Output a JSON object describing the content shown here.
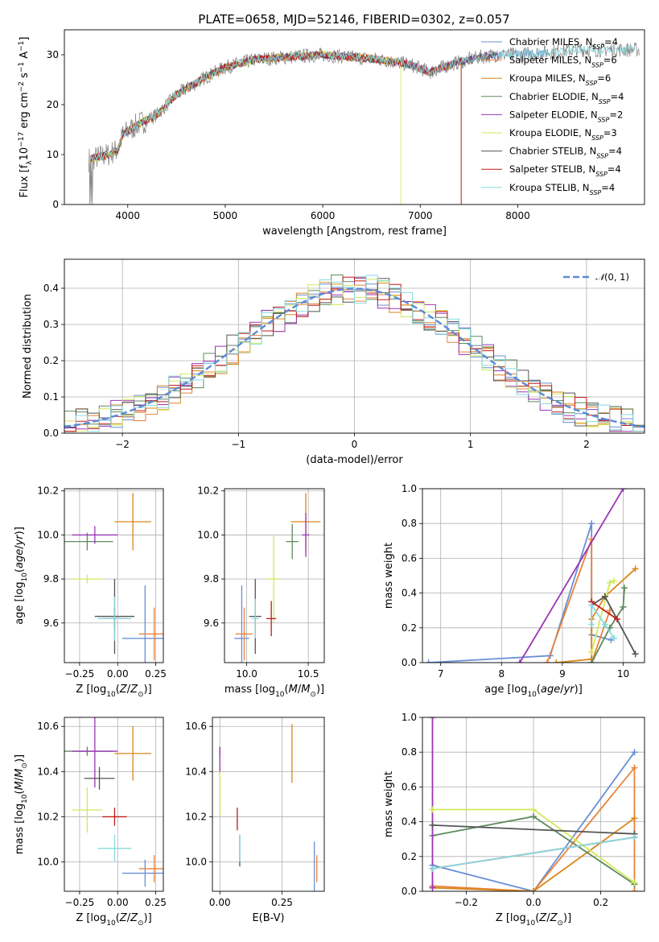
{
  "figure": {
    "title": "PLATE=0658, MJD=52146, FIBERID=0302, z=0.057"
  },
  "models": [
    {
      "name": "Chabrier MILES, N_SSP=4",
      "color": "#6a8fd5",
      "nssp": 4
    },
    {
      "name": "Salpeter MILES, N_SSP=6",
      "color": "#e8833a",
      "nssp": 6
    },
    {
      "name": "Kroupa MILES, N_SSP=6",
      "color": "#d9861c",
      "nssp": 6
    },
    {
      "name": "Chabrier ELODIE, N_SSP=4",
      "color": "#5e8a5e",
      "nssp": 4
    },
    {
      "name": "Salpeter ELODIE, N_SSP=2",
      "color": "#9b35b5",
      "nssp": 2
    },
    {
      "name": "Kroupa ELODIE, N_SSP=3",
      "color": "#d2e85a",
      "nssp": 3
    },
    {
      "name": "Chabrier STELIB, N_SSP=4",
      "color": "#555555",
      "nssp": 4
    },
    {
      "name": "Salpeter STELIB, N_SSP=4",
      "color": "#c21a1a",
      "nssp": 4
    },
    {
      "name": "Kroupa STELIB, N_SSP=4",
      "color": "#86dbe0",
      "nssp": 4
    }
  ],
  "chart_data": [
    {
      "id": "spectrum",
      "type": "line",
      "xlabel": "wavelength [Angstrom, rest frame]",
      "ylabel": "Flux [f_λ 10^-17 erg cm^-2 s^-1 A^-1]",
      "xlim": [
        3350,
        9300
      ],
      "ylim": [
        0,
        35
      ],
      "xticks": [
        4000,
        5000,
        6000,
        7000,
        8000
      ],
      "yticks": [
        0,
        10,
        20,
        30
      ],
      "grid": false,
      "legend": "top-right",
      "continuum": {
        "x": [
          3600,
          3800,
          3900,
          3950,
          4100,
          4300,
          4500,
          4800,
          5000,
          5300,
          5600,
          6000,
          6300,
          6600,
          6900,
          7100,
          7300,
          7600,
          7800,
          8000,
          8300,
          8600,
          9200
        ],
        "y": [
          9,
          10,
          11,
          14,
          16,
          18,
          22,
          25.5,
          27.5,
          29,
          29.5,
          30,
          29.5,
          29,
          28,
          26.5,
          28,
          29.5,
          30,
          30,
          30.5,
          31,
          31
        ]
      }
    },
    {
      "id": "residuals",
      "type": "histogram",
      "xlabel": "(data-model)/error",
      "ylabel": "Normed distribution",
      "xlim": [
        -2.5,
        2.5
      ],
      "ylim": [
        0,
        0.48
      ],
      "xticks": [
        -2,
        -1,
        0,
        1,
        2
      ],
      "yticks": [
        0.0,
        0.1,
        0.2,
        0.3,
        0.4
      ],
      "grid": true,
      "legend": "top-right",
      "reference": {
        "name": "N(0,1)",
        "mean": 0,
        "sigma": 1
      },
      "bin_width": 0.1
    },
    {
      "id": "age-vs-Z",
      "type": "errorbar",
      "xlabel": "Z [log10(Z/Z⊙)]",
      "ylabel": "age [log10(age/yr)]",
      "xlim": [
        -0.35,
        0.3
      ],
      "ylim": [
        9.42,
        10.21
      ],
      "xticks": [
        -0.25,
        0.0,
        0.25
      ],
      "yticks": [
        9.6,
        9.8,
        10.0,
        10.2
      ],
      "grid": true,
      "points": [
        {
          "x": 0.18,
          "xerr": 0.15,
          "y": 9.53,
          "yerr": 0.24
        },
        {
          "x": 0.24,
          "xerr": 0.1,
          "y": 9.55,
          "yerr": 0.12
        },
        {
          "x": 0.1,
          "xerr": 0.12,
          "y": 10.06,
          "yerr": 0.13
        },
        {
          "x": -0.2,
          "xerr": 0.17,
          "y": 9.97,
          "yerr": 0.04
        },
        {
          "x": -0.15,
          "xerr": 0.15,
          "y": 10.0,
          "yerr": 0.04
        },
        {
          "x": -0.2,
          "xerr": 0.1,
          "y": 9.8,
          "yerr": 0.02
        },
        {
          "x": -0.02,
          "xerr": 0.13,
          "y": 9.63,
          "yerr": 0.17
        },
        {
          "x": -0.02,
          "xerr": 0.08,
          "y": 9.62,
          "yerr": 0.05
        },
        {
          "x": -0.02,
          "xerr": 0.11,
          "y": 9.62,
          "yerr": 0.1
        }
      ]
    },
    {
      "id": "age-vs-mass",
      "type": "errorbar",
      "xlabel": "mass [log10(M/M⊙)]",
      "ylabel": "",
      "xlim": [
        9.82,
        10.63
      ],
      "ylim": [
        9.42,
        10.21
      ],
      "xticks": [
        10.0,
        10.5
      ],
      "yticks": [
        9.6,
        9.8,
        10.0,
        10.2
      ],
      "grid": true,
      "points": [
        {
          "x": 9.96,
          "xerr": 0.06,
          "y": 9.53,
          "yerr": 0.24
        },
        {
          "x": 9.98,
          "xerr": 0.07,
          "y": 9.55,
          "yerr": 0.12
        },
        {
          "x": 10.48,
          "xerr": 0.12,
          "y": 10.06,
          "yerr": 0.13
        },
        {
          "x": 10.37,
          "xerr": 0.05,
          "y": 9.97,
          "yerr": 0.08
        },
        {
          "x": 10.48,
          "xerr": 0.03,
          "y": 10.0,
          "yerr": 0.1
        },
        {
          "x": 10.22,
          "xerr": 0.05,
          "y": 9.8,
          "yerr": 0.2
        },
        {
          "x": 10.07,
          "xerr": 0.05,
          "y": 9.63,
          "yerr": 0.17
        },
        {
          "x": 10.2,
          "xerr": 0.04,
          "y": 9.62,
          "yerr": 0.08
        },
        {
          "x": 10.07,
          "xerr": 0.03,
          "y": 9.62,
          "yerr": 0.09
        }
      ]
    },
    {
      "id": "weight-vs-age",
      "type": "line",
      "xlabel": "age [log10(age/yr)]",
      "ylabel": "mass weight",
      "xlim": [
        6.7,
        10.35
      ],
      "ylim": [
        0,
        1
      ],
      "xticks": [
        7,
        8,
        9,
        10
      ],
      "yticks": [
        0.0,
        0.2,
        0.4,
        0.6,
        0.8,
        1.0
      ],
      "grid": true,
      "series": [
        {
          "x": [
            6.8,
            8.8,
            9.48,
            9.48,
            9.8
          ],
          "y": [
            0.0,
            0.04,
            0.8,
            0.16,
            0.13
          ]
        },
        {
          "x": [
            8.75,
            9.48,
            9.48,
            9.78
          ],
          "y": [
            0.0,
            0.71,
            0.0,
            0.3
          ]
        },
        {
          "x": [
            8.9,
            9.48,
            9.48,
            9.7,
            10.2
          ],
          "y": [
            0.0,
            0.02,
            0.25,
            0.38,
            0.54
          ]
        },
        {
          "x": [
            9.48,
            9.78,
            10.0,
            10.02
          ],
          "y": [
            0.0,
            0.2,
            0.32,
            0.43
          ]
        },
        {
          "x": [
            8.3,
            10.0
          ],
          "y": [
            0.0,
            1.0
          ]
        },
        {
          "x": [
            9.48,
            9.78,
            9.85
          ],
          "y": [
            0.06,
            0.46,
            0.47
          ]
        },
        {
          "x": [
            9.48,
            9.7,
            10.2
          ],
          "y": [
            0.33,
            0.38,
            0.05
          ]
        },
        {
          "x": [
            9.48,
            9.48,
            9.9
          ],
          "y": [
            0.33,
            0.35,
            0.25
          ]
        },
        {
          "x": [
            9.48,
            9.48,
            9.7,
            9.85
          ],
          "y": [
            0.22,
            0.33,
            0.22,
            0.14
          ]
        }
      ]
    },
    {
      "id": "mass-vs-Z",
      "type": "errorbar",
      "xlabel": "Z [log10(Z/Z⊙)]",
      "ylabel": "mass [log10(M/M⊙)]",
      "xlim": [
        -0.35,
        0.3
      ],
      "ylim": [
        9.87,
        10.64
      ],
      "xticks": [
        -0.25,
        0.0,
        0.25
      ],
      "yticks": [
        10.0,
        10.2,
        10.4,
        10.6
      ],
      "grid": true,
      "points": [
        {
          "x": 0.18,
          "xerr": 0.15,
          "y": 9.95,
          "yerr": 0.06
        },
        {
          "x": 0.24,
          "xerr": 0.1,
          "y": 9.97,
          "yerr": 0.06
        },
        {
          "x": 0.1,
          "xerr": 0.12,
          "y": 10.48,
          "yerr": 0.12
        },
        {
          "x": -0.2,
          "xerr": 0.17,
          "y": 10.49,
          "yerr": 0.02
        },
        {
          "x": -0.15,
          "xerr": 0.15,
          "y": 10.49,
          "yerr": 0.16
        },
        {
          "x": -0.2,
          "xerr": 0.1,
          "y": 10.23,
          "yerr": 0.1
        },
        {
          "x": -0.12,
          "xerr": 0.1,
          "y": 10.37,
          "yerr": 0.05
        },
        {
          "x": -0.02,
          "xerr": 0.08,
          "y": 10.2,
          "yerr": 0.04
        },
        {
          "x": -0.02,
          "xerr": 0.11,
          "y": 10.06,
          "yerr": 0.06
        }
      ]
    },
    {
      "id": "mass-vs-ebv",
      "type": "errorbar",
      "xlabel": "E(B-V)",
      "ylabel": "",
      "xlim": [
        -0.03,
        0.42
      ],
      "ylim": [
        9.87,
        10.64
      ],
      "xticks": [
        0.0,
        0.25
      ],
      "yticks": [
        10.0,
        10.2,
        10.4,
        10.6
      ],
      "grid": true,
      "points": [
        {
          "x": 0.38,
          "xerr": 0,
          "y": 9.95,
          "yerr": 0.14
        },
        {
          "x": 0.39,
          "xerr": 0,
          "y": 9.97,
          "yerr": 0.06
        },
        {
          "x": 0.29,
          "xerr": 0,
          "y": 10.48,
          "yerr": 0.13
        },
        {
          "x": 0.0,
          "xerr": 0,
          "y": 10.49,
          "yerr": 0.02
        },
        {
          "x": 0.0,
          "xerr": 0,
          "y": 10.45,
          "yerr": 0.06
        },
        {
          "x": 0.0,
          "xerr": 0,
          "y": 10.3,
          "yerr": 0.1
        },
        {
          "x": 0.08,
          "xerr": 0,
          "y": 10.05,
          "yerr": 0.07
        },
        {
          "x": 0.07,
          "xerr": 0,
          "y": 10.19,
          "yerr": 0.05
        },
        {
          "x": 0.08,
          "xerr": 0,
          "y": 10.06,
          "yerr": 0.06
        }
      ]
    },
    {
      "id": "weight-vs-Z",
      "type": "line",
      "xlabel": "Z [log10(Z/Z⊙)]",
      "ylabel": "mass weight",
      "xlim": [
        -0.33,
        0.33
      ],
      "ylim": [
        0,
        1
      ],
      "xticks": [
        -0.2,
        0.0,
        0.2
      ],
      "yticks": [
        0.0,
        0.2,
        0.4,
        0.6,
        0.8,
        1.0
      ],
      "grid": true,
      "series": [
        {
          "x": [
            -0.3,
            0.0,
            0.3
          ],
          "y": [
            0.15,
            0.0,
            0.8
          ]
        },
        {
          "x": [
            -0.3,
            0.0,
            0.3,
            0.3
          ],
          "y": [
            0.03,
            0.0,
            0.71,
            0.0
          ]
        },
        {
          "x": [
            -0.3,
            0.0,
            0.3
          ],
          "y": [
            0.02,
            0.0,
            0.42
          ]
        },
        {
          "x": [
            -0.3,
            0.0,
            0.3
          ],
          "y": [
            0.32,
            0.43,
            0.04
          ]
        },
        {
          "x": [
            -0.3,
            -0.3
          ],
          "y": [
            1.0,
            0.02
          ]
        },
        {
          "x": [
            -0.3,
            0.0,
            0.3
          ],
          "y": [
            0.47,
            0.47,
            0.05
          ]
        },
        {
          "x": [
            -0.3,
            0.3
          ],
          "y": [
            0.38,
            0.33
          ]
        },
        {
          "x": [
            -0.3,
            0.3
          ],
          "y": [
            0.13,
            0.31
          ]
        },
        {
          "x": [
            -0.3,
            0.3
          ],
          "y": [
            0.13,
            0.31
          ]
        }
      ]
    }
  ]
}
